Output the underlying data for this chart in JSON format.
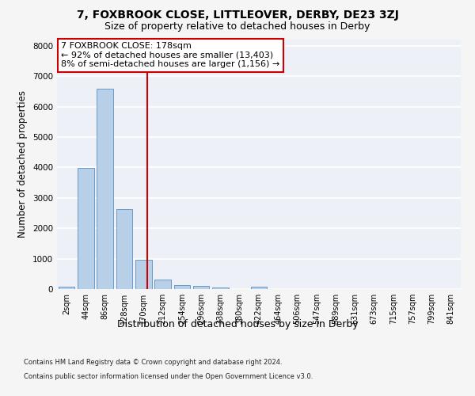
{
  "title1": "7, FOXBROOK CLOSE, LITTLEOVER, DERBY, DE23 3ZJ",
  "title2": "Size of property relative to detached houses in Derby",
  "xlabel": "Distribution of detached houses by size in Derby",
  "ylabel": "Number of detached properties",
  "footnote1": "Contains HM Land Registry data © Crown copyright and database right 2024.",
  "footnote2": "Contains public sector information licensed under the Open Government Licence v3.0.",
  "categories": [
    "2sqm",
    "44sqm",
    "86sqm",
    "128sqm",
    "170sqm",
    "212sqm",
    "254sqm",
    "296sqm",
    "338sqm",
    "380sqm",
    "422sqm",
    "464sqm",
    "506sqm",
    "547sqm",
    "589sqm",
    "631sqm",
    "673sqm",
    "715sqm",
    "757sqm",
    "799sqm",
    "841sqm"
  ],
  "values": [
    80,
    3980,
    6580,
    2620,
    960,
    310,
    135,
    95,
    60,
    0,
    90,
    0,
    0,
    0,
    0,
    0,
    0,
    0,
    0,
    0,
    0
  ],
  "bar_color": "#b8cfe8",
  "bar_edge_color": "#6699cc",
  "vline_color": "#cc0000",
  "annotation_text": "7 FOXBROOK CLOSE: 178sqm\n← 92% of detached houses are smaller (13,403)\n8% of semi-detached houses are larger (1,156) →",
  "annotation_box_color": "#ffffff",
  "annotation_box_edge": "#cc0000",
  "ylim": [
    0,
    8200
  ],
  "yticks": [
    0,
    1000,
    2000,
    3000,
    4000,
    5000,
    6000,
    7000,
    8000
  ],
  "plot_bg_color": "#eef0f8",
  "fig_bg_color": "#f5f5f5",
  "grid_color": "#ffffff",
  "title1_fontsize": 10,
  "title2_fontsize": 9,
  "annotation_fontsize": 8,
  "tick_fontsize": 7,
  "ylabel_fontsize": 8.5,
  "xlabel_fontsize": 9,
  "footnote_fontsize": 6
}
